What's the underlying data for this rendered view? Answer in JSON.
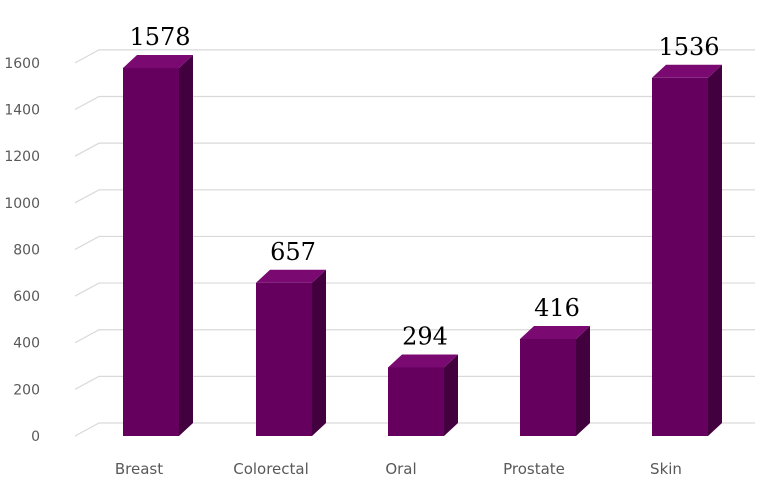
{
  "chart_data": {
    "type": "bar",
    "style": "3d-column",
    "categories": [
      "Breast",
      "Colorectal",
      "Oral",
      "Prostate",
      "Skin"
    ],
    "series": [
      {
        "values": [
          1578,
          657,
          294,
          416,
          1536
        ]
      }
    ],
    "data_labels": [
      "1578",
      "657",
      "294",
      "416",
      "1536"
    ],
    "y_ticks": [
      "0",
      "200",
      "400",
      "600",
      "800",
      "1000",
      "1200",
      "1400",
      "1600"
    ],
    "ylim": [
      0,
      1600
    ],
    "grid": true,
    "legend": "none",
    "colors": {
      "bar_front": "#66005f",
      "bar_side": "#43003e",
      "bar_top": "#7a0a72",
      "grid": "#d9d9d9",
      "tick_text": "#595959"
    }
  }
}
